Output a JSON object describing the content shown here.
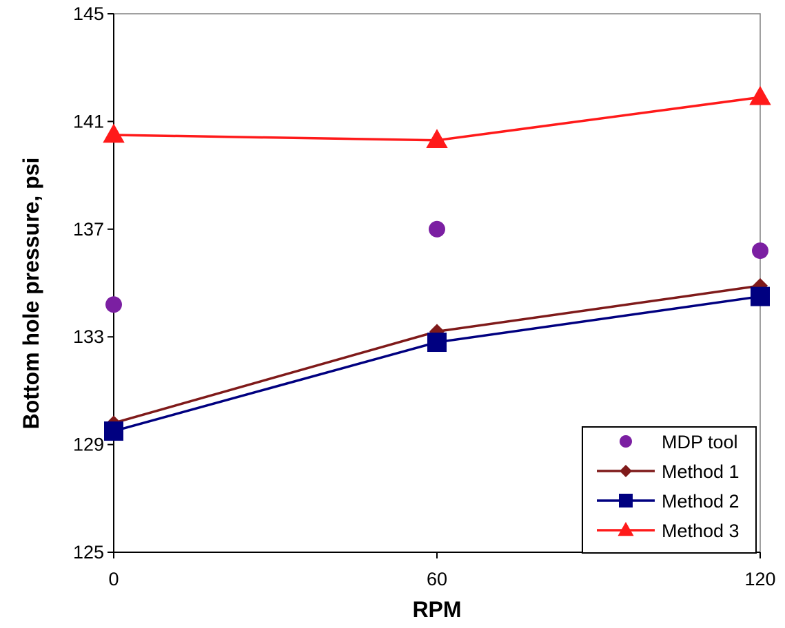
{
  "chart_data": {
    "type": "line",
    "title": "",
    "xlabel": "RPM",
    "ylabel": "Bottom hole pressure, psi",
    "x": [
      0,
      60,
      120
    ],
    "x_ticks": [
      "0",
      "60",
      "120"
    ],
    "xlim": [
      0,
      120
    ],
    "ylim": [
      125,
      145
    ],
    "y_ticks": [
      "125",
      "129",
      "133",
      "137",
      "141",
      "145"
    ],
    "grid": false,
    "legend_position": "bottom-right",
    "series": [
      {
        "name": "MDP tool",
        "values": [
          134.2,
          137.0,
          136.2
        ],
        "color": "#7B1FA2",
        "marker": "circle",
        "line": false
      },
      {
        "name": "Method 1",
        "values": [
          129.8,
          133.2,
          134.9
        ],
        "color": "#7F1A1A",
        "marker": "diamond",
        "line": true
      },
      {
        "name": "Method 2",
        "values": [
          129.5,
          132.8,
          134.5
        ],
        "color": "#000080",
        "marker": "square",
        "line": true
      },
      {
        "name": "Method 3",
        "values": [
          140.5,
          140.3,
          141.9
        ],
        "color": "#FF1A1A",
        "marker": "triangle",
        "line": true
      }
    ]
  }
}
